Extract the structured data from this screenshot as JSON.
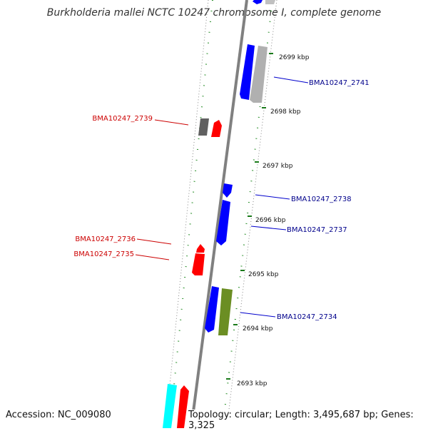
{
  "title": "Burkholderia mallei NCTC 10247 chromosome I, complete genome",
  "accession_label": "Accession: NC_009080",
  "topology_label": "Topology: circular; Length: 3,495,687 bp; Genes: 3,325",
  "ticks": [
    "2699 kbp",
    "2698 kbp",
    "2697 kbp",
    "2696 kbp",
    "2695 kbp",
    "2694 kbp",
    "2693 kbp"
  ],
  "genes": [
    {
      "name": "BMA10247_2741",
      "color": "#00008b"
    },
    {
      "name": "BMA10247_2739",
      "color": "#cc0000"
    },
    {
      "name": "BMA10247_2738",
      "color": "#00008b"
    },
    {
      "name": "BMA10247_2737",
      "color": "#00008b"
    },
    {
      "name": "BMA10247_2736",
      "color": "#cc0000"
    },
    {
      "name": "BMA10247_2735",
      "color": "#cc0000"
    },
    {
      "name": "BMA10247_2734",
      "color": "#00008b"
    }
  ],
  "colors": {
    "forward": "#0000ff",
    "reverse": "#ff0000",
    "gc": "#228b22",
    "backbone": "#808080"
  }
}
